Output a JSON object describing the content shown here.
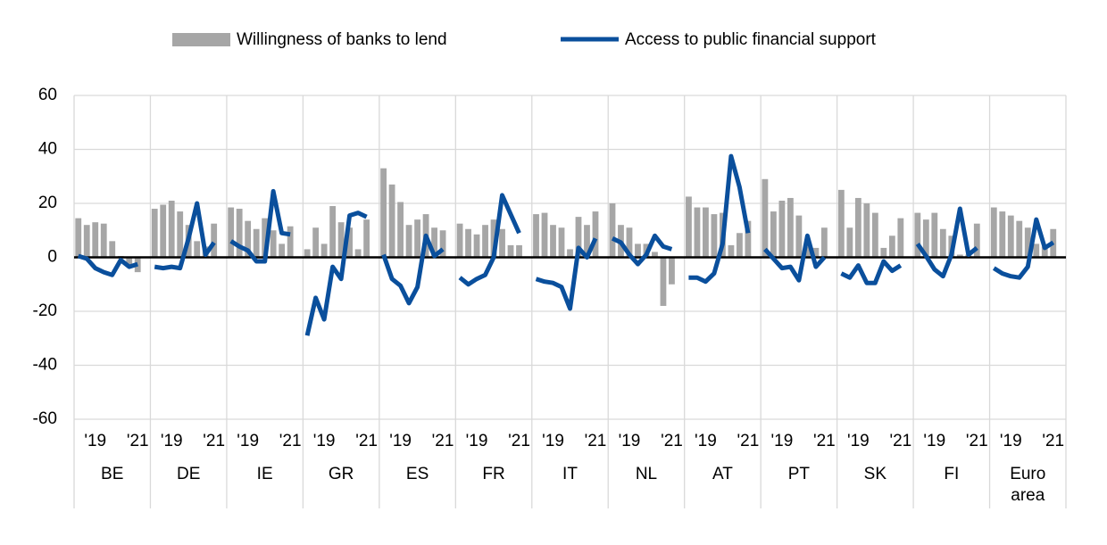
{
  "chart_data": {
    "type": "grouped-bar-line",
    "groups": [
      "BE",
      "DE",
      "IE",
      "GR",
      "ES",
      "FR",
      "IT",
      "NL",
      "AT",
      "PT",
      "SK",
      "FI",
      "Euro area"
    ],
    "period_ticks": [
      {
        "value": 2,
        "label": "'19"
      },
      {
        "value": 7,
        "label": "'21"
      }
    ],
    "series": [
      {
        "name": "Willingness of banks to lend",
        "kind": "bar",
        "color": "#a6a6a6",
        "values": [
          [
            14.5,
            12,
            13,
            12.5,
            6,
            0.5,
            -3,
            -5.5
          ],
          [
            18,
            19.5,
            21,
            17,
            12,
            6,
            4,
            12.5
          ],
          [
            18.5,
            18,
            13.5,
            10.5,
            14.5,
            10,
            5,
            11.5
          ],
          [
            3,
            11,
            5,
            19,
            13,
            11,
            3,
            14
          ],
          [
            33,
            27,
            20.5,
            12,
            14,
            16,
            11,
            10
          ],
          [
            12.5,
            10.5,
            8.5,
            12,
            14,
            10.5,
            4.5,
            4.5
          ],
          [
            16,
            16.5,
            12,
            11,
            3,
            15,
            12,
            17
          ],
          [
            20,
            12,
            11,
            5,
            5,
            2,
            -18,
            -10
          ],
          [
            22.5,
            18.5,
            18.5,
            16,
            16.5,
            4.5,
            9,
            13.5
          ],
          [
            29,
            17,
            21,
            22,
            15.5,
            4,
            3.5,
            11
          ],
          [
            25,
            11,
            22,
            20,
            16.5,
            3.5,
            8,
            14.5
          ],
          [
            16.5,
            14,
            16.5,
            10.5,
            8,
            1,
            1,
            12.5
          ],
          [
            18.5,
            17,
            15.5,
            13.5,
            11,
            5,
            4,
            10.5
          ]
        ]
      },
      {
        "name": "Access to public financial support",
        "kind": "line",
        "color": "#0a4f9c",
        "values": [
          [
            0.5,
            -0.5,
            -4,
            -5.5,
            -6.5,
            -1,
            -3.5,
            -2.5
          ],
          [
            -3.5,
            -4,
            -3.5,
            -4,
            7,
            20,
            1,
            5.5
          ],
          [
            6,
            4,
            2.5,
            -1.5,
            -1.5,
            24.5,
            9,
            8.5
          ],
          [
            -29,
            -15,
            -23,
            -3.5,
            -8,
            15.5,
            16.5,
            15
          ],
          [
            1,
            -8,
            -10.5,
            -17,
            -11,
            8,
            0.5,
            3
          ],
          [
            -7.5,
            -10,
            -8,
            -6.5,
            0,
            23,
            16,
            9
          ],
          [
            -8,
            -9,
            -9.5,
            -11,
            -19,
            3.5,
            0,
            7
          ],
          [
            7,
            5.5,
            1,
            -2.5,
            1,
            8,
            4,
            3
          ],
          [
            -7.5,
            -7.5,
            -9,
            -6,
            5,
            37.5,
            26,
            9
          ],
          [
            3,
            -0.5,
            -4,
            -3.5,
            -8.5,
            8,
            -3.5,
            0
          ],
          [
            -6,
            -7.5,
            -3,
            -9.5,
            -9.5,
            -1.5,
            -5,
            -3
          ],
          [
            5,
            0.5,
            -4.5,
            -7,
            1,
            18,
            1,
            3.5
          ],
          [
            -4,
            -6,
            -7,
            -7.5,
            -3.5,
            14,
            3.5,
            5.5
          ]
        ]
      }
    ],
    "ylim": [
      -60,
      60
    ],
    "yticks": [
      -60,
      -40,
      -20,
      0,
      20,
      40,
      60
    ],
    "grid": true
  }
}
